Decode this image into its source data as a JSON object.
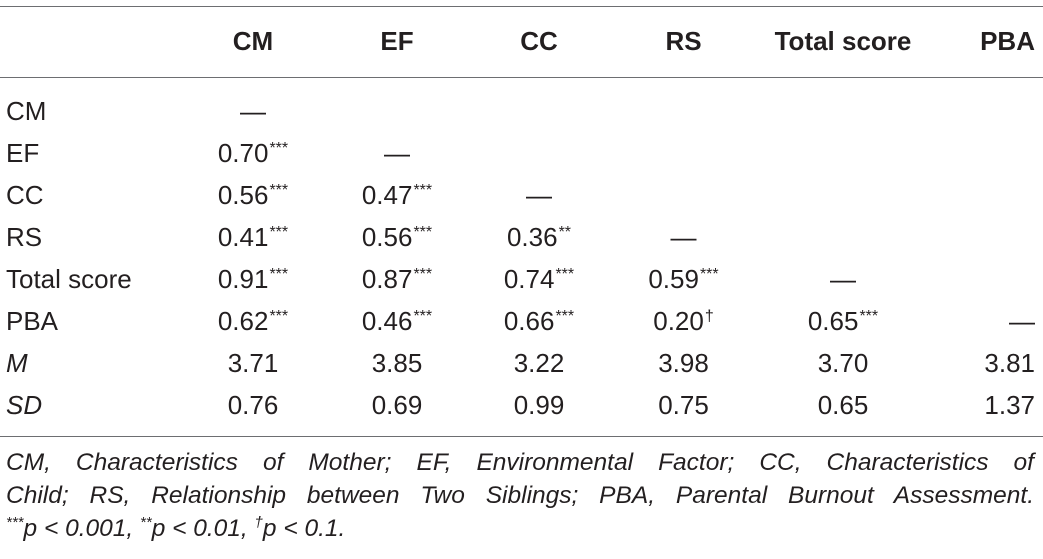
{
  "table": {
    "columns": [
      "",
      "CM",
      "EF",
      "CC",
      "RS",
      "Total score",
      "PBA"
    ],
    "rows": [
      {
        "label": "CM",
        "label_italic": false,
        "cells": [
          {
            "v": "—",
            "s": ""
          },
          {
            "v": "",
            "s": ""
          },
          {
            "v": "",
            "s": ""
          },
          {
            "v": "",
            "s": ""
          },
          {
            "v": "",
            "s": ""
          },
          {
            "v": "",
            "s": ""
          }
        ]
      },
      {
        "label": "EF",
        "label_italic": false,
        "cells": [
          {
            "v": "0.70",
            "s": "***"
          },
          {
            "v": "—",
            "s": ""
          },
          {
            "v": "",
            "s": ""
          },
          {
            "v": "",
            "s": ""
          },
          {
            "v": "",
            "s": ""
          },
          {
            "v": "",
            "s": ""
          }
        ]
      },
      {
        "label": "CC",
        "label_italic": false,
        "cells": [
          {
            "v": "0.56",
            "s": "***"
          },
          {
            "v": "0.47",
            "s": "***"
          },
          {
            "v": "—",
            "s": ""
          },
          {
            "v": "",
            "s": ""
          },
          {
            "v": "",
            "s": ""
          },
          {
            "v": "",
            "s": ""
          }
        ]
      },
      {
        "label": "RS",
        "label_italic": false,
        "cells": [
          {
            "v": "0.41",
            "s": "***"
          },
          {
            "v": "0.56",
            "s": "***"
          },
          {
            "v": "0.36",
            "s": "**"
          },
          {
            "v": "—",
            "s": ""
          },
          {
            "v": "",
            "s": ""
          },
          {
            "v": "",
            "s": ""
          }
        ]
      },
      {
        "label": "Total score",
        "label_italic": false,
        "cells": [
          {
            "v": "0.91",
            "s": "***"
          },
          {
            "v": "0.87",
            "s": "***"
          },
          {
            "v": "0.74",
            "s": "***"
          },
          {
            "v": "0.59",
            "s": "***"
          },
          {
            "v": "—",
            "s": ""
          },
          {
            "v": "",
            "s": ""
          }
        ]
      },
      {
        "label": "PBA",
        "label_italic": false,
        "cells": [
          {
            "v": "0.62",
            "s": "***"
          },
          {
            "v": "0.46",
            "s": "***"
          },
          {
            "v": "0.66",
            "s": "***"
          },
          {
            "v": "0.20",
            "s": "†"
          },
          {
            "v": "0.65",
            "s": "***"
          },
          {
            "v": "—",
            "s": ""
          }
        ]
      },
      {
        "label": "M",
        "label_italic": true,
        "cells": [
          {
            "v": "3.71",
            "s": ""
          },
          {
            "v": "3.85",
            "s": ""
          },
          {
            "v": "3.22",
            "s": ""
          },
          {
            "v": "3.98",
            "s": ""
          },
          {
            "v": "3.70",
            "s": ""
          },
          {
            "v": "3.81",
            "s": ""
          }
        ]
      },
      {
        "label": "SD",
        "label_italic": true,
        "cells": [
          {
            "v": "0.76",
            "s": ""
          },
          {
            "v": "0.69",
            "s": ""
          },
          {
            "v": "0.99",
            "s": ""
          },
          {
            "v": "0.75",
            "s": ""
          },
          {
            "v": "0.65",
            "s": ""
          },
          {
            "v": "1.37",
            "s": ""
          }
        ]
      }
    ]
  },
  "note": {
    "line1": "CM, Characteristics of Mother; EF, Environmental Factor; CC, Characteristics of",
    "line2": "Child; RS, Relationship between Two Siblings; PBA, Parental Burnout Assessment.",
    "line3_p1_mark": "***",
    "line3_p1_text": "p < 0.001, ",
    "line3_p2_mark": "**",
    "line3_p2_text": "p < 0.01, ",
    "line3_p3_mark": "†",
    "line3_p3_text": "p < 0.1."
  }
}
